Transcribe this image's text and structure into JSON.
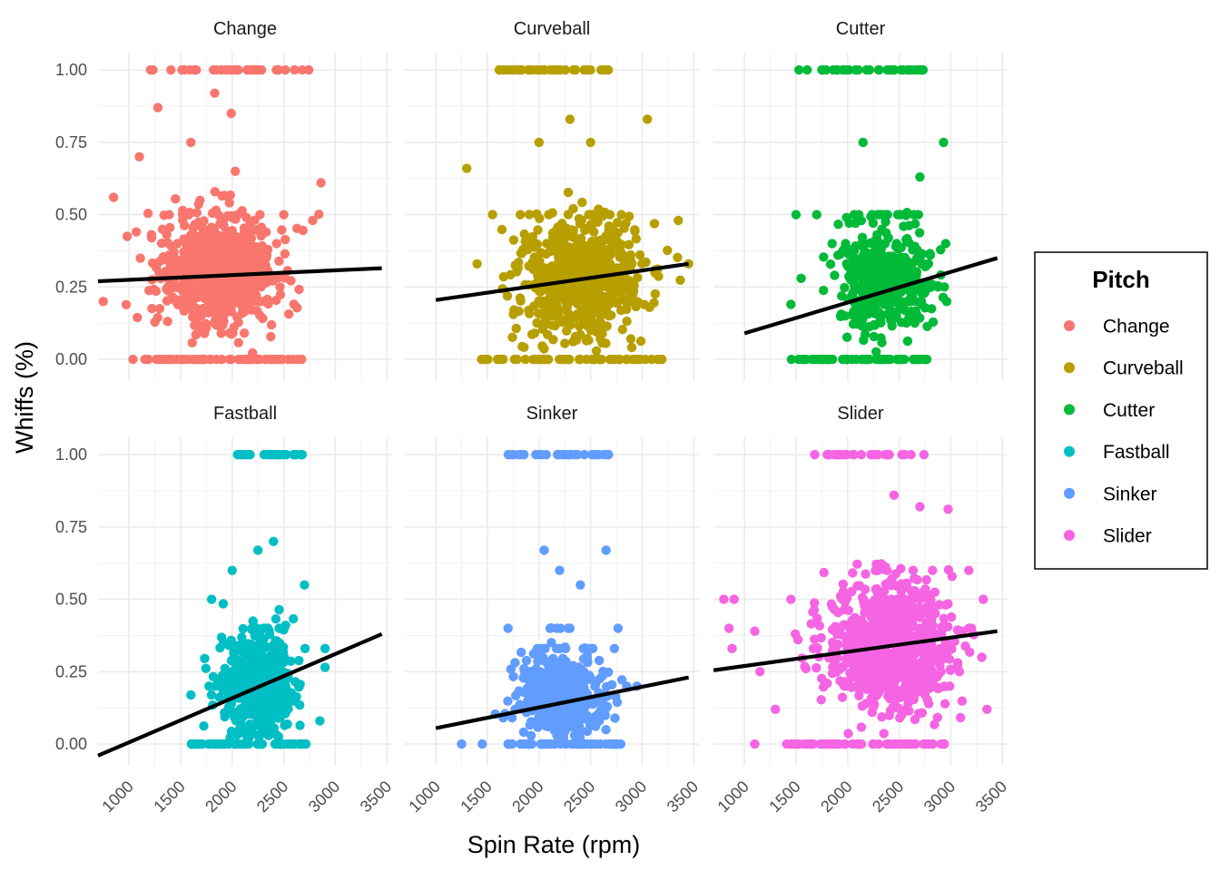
{
  "chart_data": {
    "type": "scatter",
    "title": "",
    "xlabel": "Spin Rate (rpm)",
    "ylabel": "Whiffs (%)",
    "xlim": [
      700,
      3550
    ],
    "ylim": [
      -0.075,
      1.06
    ],
    "x_ticks": [
      "1000",
      "1500",
      "2000",
      "2500",
      "3000",
      "3500"
    ],
    "y_ticks": [
      "0.00",
      "0.25",
      "0.50",
      "0.75",
      "1.00"
    ],
    "grid": true,
    "legend": {
      "title": "Pitch",
      "placement": "right",
      "entries": [
        "Change",
        "Curveball",
        "Cutter",
        "Fastball",
        "Sinker",
        "Slider"
      ]
    },
    "facets": [
      {
        "name": "Change",
        "color": "#F8766D",
        "trend": {
          "x": [
            700,
            3450
          ],
          "y": [
            0.27,
            0.315
          ]
        },
        "cloud": {
          "x_center": 1850,
          "x_spread": 260,
          "y_center": 0.3,
          "y_spread": 0.1,
          "n": 650
        },
        "outliers": [
          {
            "x": 1100,
            "y": 0.7
          },
          {
            "x": 1280,
            "y": 0.87
          },
          {
            "x": 1830,
            "y": 0.92
          },
          {
            "x": 2860,
            "y": 0.61
          },
          {
            "x": 2780,
            "y": 0.48
          },
          {
            "x": 750,
            "y": 0.2
          },
          {
            "x": 1600,
            "y": 0.75
          },
          {
            "x": 2030,
            "y": 0.65
          },
          {
            "x": 1990,
            "y": 0.85
          },
          {
            "x": 850,
            "y": 0.56
          },
          {
            "x": 1220,
            "y": 0.42
          },
          {
            "x": 2500,
            "y": 0.5
          }
        ],
        "edge_y1": {
          "from": 1200,
          "to": 2750
        },
        "edge_y0": {
          "from": 1000,
          "to": 2680
        }
      },
      {
        "name": "Curveball",
        "color": "#B79F00",
        "trend": {
          "x": 1000,
          "y": 0.0
        },
        "trend_line": {
          "x": [
            1000,
            3450
          ],
          "y": [
            0.205,
            0.33
          ]
        },
        "cloud": {
          "x_center": 2400,
          "x_spread": 290,
          "y_center": 0.28,
          "y_spread": 0.1,
          "n": 650
        },
        "outliers": [
          {
            "x": 1300,
            "y": 0.66
          },
          {
            "x": 1550,
            "y": 0.5
          },
          {
            "x": 2300,
            "y": 0.83
          },
          {
            "x": 3050,
            "y": 0.83
          },
          {
            "x": 1400,
            "y": 0.33
          },
          {
            "x": 2000,
            "y": 0.75
          },
          {
            "x": 3350,
            "y": 0.48
          },
          {
            "x": 3450,
            "y": 0.33
          },
          {
            "x": 2500,
            "y": 0.75
          }
        ],
        "edge_y1": {
          "from": 1600,
          "to": 2700
        },
        "edge_y0": {
          "from": 1300,
          "to": 3200
        }
      },
      {
        "name": "Cutter",
        "color": "#00BA38",
        "trend_line": {
          "x": [
            1000,
            3450
          ],
          "y": [
            0.09,
            0.35
          ]
        },
        "cloud": {
          "x_center": 2350,
          "x_spread": 220,
          "y_center": 0.27,
          "y_spread": 0.08,
          "n": 450
        },
        "outliers": [
          {
            "x": 1450,
            "y": 0.19
          },
          {
            "x": 1500,
            "y": 0.5
          },
          {
            "x": 1700,
            "y": 0.5
          },
          {
            "x": 2930,
            "y": 0.75
          },
          {
            "x": 2700,
            "y": 0.63
          },
          {
            "x": 2150,
            "y": 0.75
          },
          {
            "x": 1850,
            "y": 0.4
          },
          {
            "x": 1550,
            "y": 0.28
          },
          {
            "x": 2950,
            "y": 0.4
          }
        ],
        "edge_y1": {
          "from": 1500,
          "to": 2750
        },
        "edge_y0": {
          "from": 1450,
          "to": 2800
        }
      },
      {
        "name": "Fastball",
        "color": "#00BFC4",
        "trend_line": {
          "x": [
            700,
            3450
          ],
          "y": [
            -0.04,
            0.38
          ]
        },
        "cloud": {
          "x_center": 2250,
          "x_spread": 170,
          "y_center": 0.2,
          "y_spread": 0.08,
          "n": 550
        },
        "outliers": [
          {
            "x": 1600,
            "y": 0.17
          },
          {
            "x": 2400,
            "y": 0.7
          },
          {
            "x": 2700,
            "y": 0.55
          },
          {
            "x": 2900,
            "y": 0.33
          },
          {
            "x": 2850,
            "y": 0.08
          },
          {
            "x": 2000,
            "y": 0.6
          },
          {
            "x": 2250,
            "y": 0.67
          },
          {
            "x": 1800,
            "y": 0.5
          }
        ],
        "edge_y1": {
          "from": 2050,
          "to": 2680
        },
        "edge_y0": {
          "from": 1600,
          "to": 2750
        }
      },
      {
        "name": "Sinker",
        "color": "#619CFF",
        "trend_line": {
          "x": [
            1000,
            3450
          ],
          "y": [
            0.055,
            0.23
          ]
        },
        "cloud": {
          "x_center": 2200,
          "x_spread": 200,
          "y_center": 0.17,
          "y_spread": 0.07,
          "n": 450
        },
        "outliers": [
          {
            "x": 1700,
            "y": 0.4
          },
          {
            "x": 2200,
            "y": 0.6
          },
          {
            "x": 2400,
            "y": 0.55
          },
          {
            "x": 2950,
            "y": 0.2
          },
          {
            "x": 2850,
            "y": 0.2
          },
          {
            "x": 2050,
            "y": 0.67
          },
          {
            "x": 2650,
            "y": 0.67
          },
          {
            "x": 1250,
            "y": 0.0
          },
          {
            "x": 1450,
            "y": 0.0
          }
        ],
        "edge_y1": {
          "from": 1700,
          "to": 2680
        },
        "edge_y0": {
          "from": 1700,
          "to": 2800
        }
      },
      {
        "name": "Slider",
        "color": "#F564E3",
        "trend_line": {
          "x": [
            700,
            3450
          ],
          "y": [
            0.255,
            0.39
          ]
        },
        "cloud": {
          "x_center": 2400,
          "x_spread": 300,
          "y_center": 0.34,
          "y_spread": 0.11,
          "n": 750
        },
        "outliers": [
          {
            "x": 800,
            "y": 0.5
          },
          {
            "x": 900,
            "y": 0.5
          },
          {
            "x": 850,
            "y": 0.4
          },
          {
            "x": 880,
            "y": 0.33
          },
          {
            "x": 1100,
            "y": 0.0
          },
          {
            "x": 1150,
            "y": 0.25
          },
          {
            "x": 1300,
            "y": 0.12
          },
          {
            "x": 2450,
            "y": 0.86
          },
          {
            "x": 2700,
            "y": 0.82
          },
          {
            "x": 3350,
            "y": 0.12
          },
          {
            "x": 3300,
            "y": 0.3
          },
          {
            "x": 3200,
            "y": 0.4
          },
          {
            "x": 1100,
            "y": 0.39
          },
          {
            "x": 1450,
            "y": 0.5
          }
        ],
        "edge_y1": {
          "from": 1600,
          "to": 2750
        },
        "edge_y0": {
          "from": 1400,
          "to": 2950
        }
      }
    ]
  }
}
